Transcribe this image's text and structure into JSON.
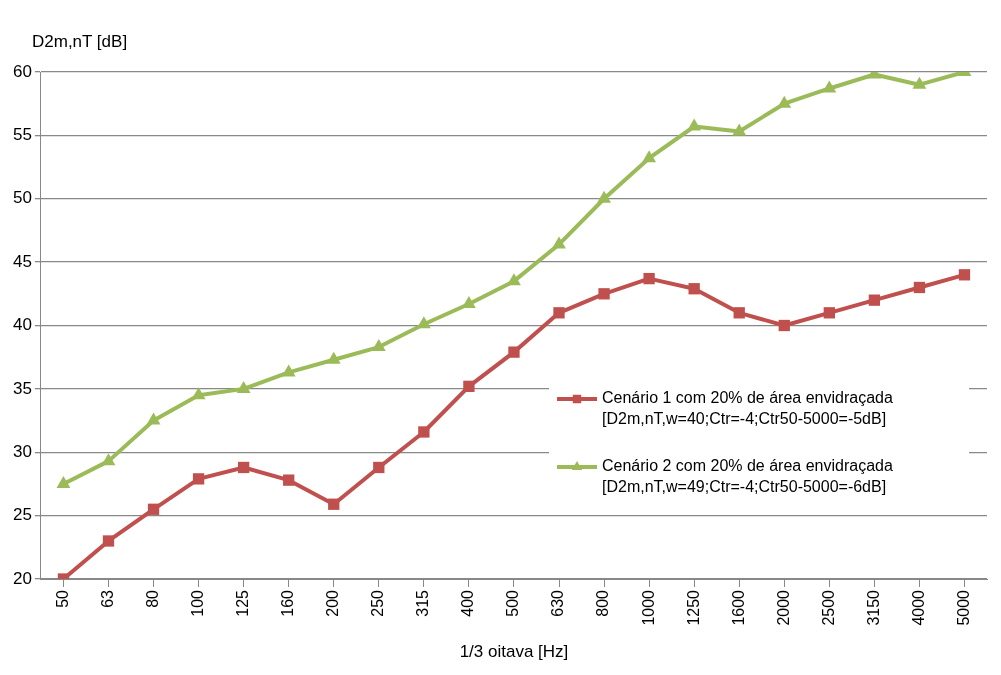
{
  "chart_data": {
    "type": "line",
    "xlabel": "1/3 oitava [Hz]",
    "ylabel": "D2m,nT [dB]",
    "categories": [
      "50",
      "63",
      "80",
      "100",
      "125",
      "160",
      "200",
      "250",
      "315",
      "400",
      "500",
      "630",
      "800",
      "1000",
      "1250",
      "1600",
      "2000",
      "2500",
      "3150",
      "4000",
      "5000"
    ],
    "series": [
      {
        "name": "Cenário 1 com 20% de área envidraçada [D2m,nT,w=40;Ctr=-4;Ctr50-5000=-5dB]",
        "color": "#c0504d",
        "marker": "square",
        "values": [
          20,
          23,
          25.5,
          27.9,
          28.8,
          27.8,
          25.9,
          28.8,
          31.6,
          35.2,
          37.9,
          41,
          42.5,
          43.7,
          42.9,
          41,
          40,
          41,
          42,
          43,
          44
        ]
      },
      {
        "name": "Cenário 2 com 20% de área envidraçada [D2m,nT,w=49;Ctr=-4;Ctr50-5000=-6dB]",
        "color": "#9bbb59",
        "marker": "triangle",
        "values": [
          27.5,
          29.3,
          32.5,
          34.5,
          35,
          36.3,
          37.3,
          38.3,
          40.1,
          41.7,
          43.5,
          46.4,
          50,
          53.2,
          55.7,
          55.3,
          57.5,
          58.7,
          59.8,
          59,
          60
        ]
      }
    ],
    "ylim": [
      20,
      60
    ],
    "yticks": [
      20,
      25,
      30,
      35,
      40,
      45,
      50,
      55,
      60
    ],
    "grid": "y",
    "legend": "right"
  }
}
